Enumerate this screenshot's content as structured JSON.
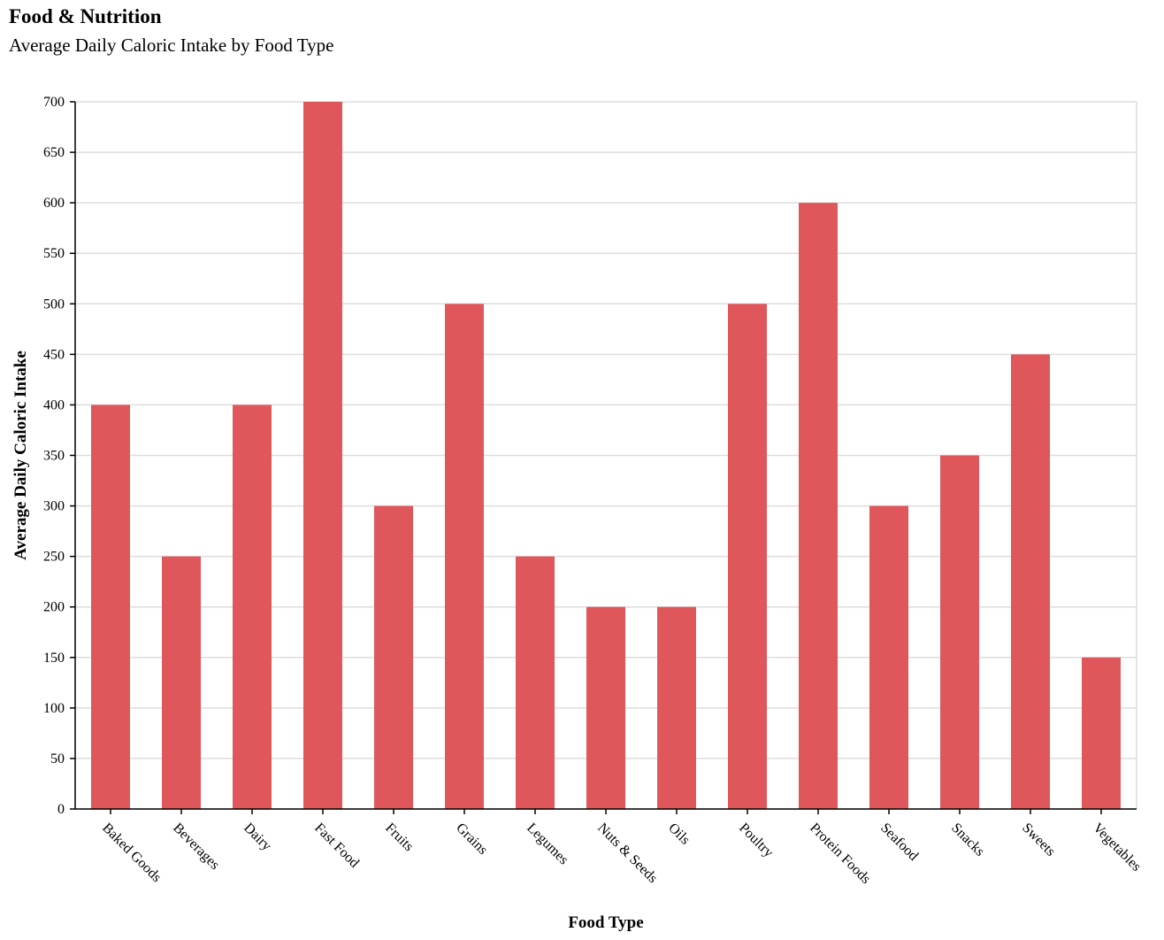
{
  "header": {
    "title": "Food & Nutrition",
    "subtitle": "Average Daily Caloric Intake by Food Type"
  },
  "chart_data": {
    "type": "bar",
    "title": "Food & Nutrition",
    "subtitle": "Average Daily Caloric Intake by Food Type",
    "xlabel": "Food Type",
    "ylabel": "Average Daily Caloric Intake",
    "categories": [
      "Baked Goods",
      "Beverages",
      "Dairy",
      "Fast Food",
      "Fruits",
      "Grains",
      "Legumes",
      "Nuts & Seeds",
      "Oils",
      "Poultry",
      "Protein Foods",
      "Seafood",
      "Snacks",
      "Sweets",
      "Vegetables"
    ],
    "values": [
      400,
      250,
      400,
      700,
      300,
      500,
      250,
      200,
      200,
      500,
      600,
      300,
      350,
      450,
      150
    ],
    "ylim": [
      0,
      700
    ],
    "yticks": [
      0,
      50,
      100,
      150,
      200,
      250,
      300,
      350,
      400,
      450,
      500,
      550,
      600,
      650,
      700
    ],
    "grid": true,
    "bar_color": "#e0575b",
    "grid_color": "#dddddd",
    "axis_color": "#000000"
  }
}
